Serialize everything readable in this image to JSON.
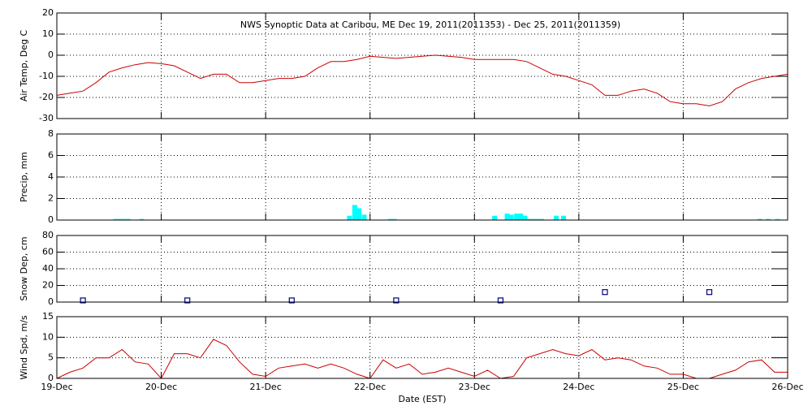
{
  "x_axis": {
    "xlim": [
      0,
      7
    ],
    "xticks": [
      {
        "value": 0,
        "label": "19-Dec"
      },
      {
        "value": 1,
        "label": "20-Dec"
      },
      {
        "value": 2,
        "label": "21-Dec"
      },
      {
        "value": 3,
        "label": "22-Dec"
      },
      {
        "value": 4,
        "label": "23-Dec"
      },
      {
        "value": 5,
        "label": "24-Dec"
      },
      {
        "value": 6,
        "label": "25-Dec"
      },
      {
        "value": 7,
        "label": "26-Dec"
      }
    ],
    "xlabel": "Date (EST)"
  },
  "chart_data": [
    {
      "type": "line",
      "title": "NWS Synoptic Data at Caribou, ME   Dec 19, 2011(2011353) - Dec 25, 2011(2011359)",
      "ylabel": "Air Temp, Deg C",
      "ylim": [
        -30,
        20
      ],
      "yticks": [
        -30,
        -20,
        -10,
        0,
        10,
        20
      ],
      "grid": true,
      "color": "#cc0000",
      "x": [
        0,
        0.125,
        0.25,
        0.375,
        0.5,
        0.625,
        0.75,
        0.875,
        1,
        1.125,
        1.25,
        1.375,
        1.5,
        1.625,
        1.75,
        1.875,
        2,
        2.125,
        2.25,
        2.375,
        2.5,
        2.625,
        2.75,
        2.875,
        3,
        3.125,
        3.25,
        3.375,
        3.5,
        3.625,
        3.75,
        3.875,
        4,
        4.125,
        4.25,
        4.375,
        4.5,
        4.625,
        4.75,
        4.875,
        5,
        5.125,
        5.25,
        5.375,
        5.5,
        5.625,
        5.75,
        5.875,
        6,
        6.125,
        6.25,
        6.375,
        6.5,
        6.625,
        6.75,
        6.875,
        7
      ],
      "values": [
        -19,
        -18,
        -17,
        -13,
        -8,
        -6,
        -4.5,
        -3.5,
        -4,
        -5,
        -8,
        -11,
        -9,
        -9,
        -13,
        -13,
        -12,
        -11,
        -11,
        -10,
        -6,
        -3,
        -3,
        -2,
        -0.5,
        -1,
        -1.5,
        -1,
        -0.5,
        0,
        -0.5,
        -1,
        -2,
        -2,
        -2,
        -2,
        -3,
        -6,
        -9,
        -10,
        -12,
        -14,
        -19,
        -19,
        -17,
        -16,
        -18,
        -22,
        -23,
        -23,
        -24,
        -22,
        -16,
        -13,
        -11,
        -10,
        -9
      ]
    },
    {
      "type": "bar",
      "ylabel": "Precip, mm",
      "ylim": [
        0,
        8
      ],
      "yticks": [
        0,
        2,
        4,
        6,
        8
      ],
      "grid": true,
      "color": "#00ffff",
      "x": [
        0.54,
        0.58,
        0.62,
        0.66,
        0.79,
        2.78,
        2.83,
        2.87,
        2.92,
        3.17,
        3.21,
        4.17,
        4.29,
        4.33,
        4.38,
        4.42,
        4.46,
        4.5,
        4.54,
        4.58,
        4.62,
        4.76,
        4.83,
        6.71,
        6.79,
        6.88
      ],
      "values": [
        0.1,
        0.1,
        0.1,
        0.1,
        0.1,
        0.4,
        1.4,
        1.1,
        0.5,
        0.1,
        0.1,
        0.4,
        0.6,
        0.5,
        0.6,
        0.6,
        0.4,
        0.1,
        0.1,
        0.1,
        0.1,
        0.4,
        0.4,
        0.1,
        0.1,
        0.1
      ]
    },
    {
      "type": "scatter",
      "ylabel": "Snow Dep, cm",
      "ylim": [
        0,
        80
      ],
      "yticks": [
        0,
        20,
        40,
        60,
        80
      ],
      "grid": true,
      "color": "#000080",
      "x": [
        0.25,
        1.25,
        2.25,
        3.25,
        4.25,
        5.25,
        6.25
      ],
      "values": [
        2,
        2,
        2,
        2,
        2,
        12,
        12
      ]
    },
    {
      "type": "line",
      "ylabel": "Wind Spd, m/s",
      "ylim": [
        0,
        15
      ],
      "yticks": [
        0,
        5,
        10,
        15
      ],
      "grid": true,
      "color": "#cc0000",
      "x": [
        0,
        0.125,
        0.25,
        0.375,
        0.5,
        0.625,
        0.75,
        0.875,
        1,
        1.125,
        1.25,
        1.375,
        1.5,
        1.625,
        1.75,
        1.875,
        2,
        2.125,
        2.25,
        2.375,
        2.5,
        2.625,
        2.75,
        2.875,
        3,
        3.125,
        3.25,
        3.375,
        3.5,
        3.625,
        3.75,
        3.875,
        4,
        4.125,
        4.25,
        4.375,
        4.5,
        4.625,
        4.75,
        4.875,
        5,
        5.125,
        5.25,
        5.375,
        5.5,
        5.625,
        5.75,
        5.875,
        6,
        6.125,
        6.25,
        6.375,
        6.5,
        6.625,
        6.75,
        6.875,
        7
      ],
      "values": [
        0,
        1.5,
        2.5,
        5,
        5,
        7,
        4,
        3.5,
        0,
        6,
        6,
        5,
        9.5,
        8,
        4,
        1,
        0.5,
        2.5,
        3,
        3.5,
        2.5,
        3.5,
        2.5,
        1,
        0,
        4.5,
        2.5,
        3.5,
        1,
        1.5,
        2.5,
        1.5,
        0.5,
        2,
        0,
        0.5,
        5,
        6,
        7,
        6,
        5.5,
        7,
        4.5,
        5,
        4.5,
        3,
        2.5,
        1,
        1,
        0,
        0,
        1,
        2,
        4,
        4.5,
        1.5,
        1.5
      ]
    }
  ]
}
